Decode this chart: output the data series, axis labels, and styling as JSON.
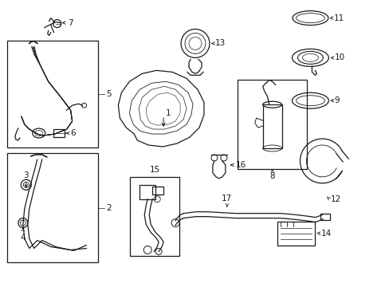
{
  "bg_color": "#ffffff",
  "line_color": "#1a1a1a",
  "fig_width": 4.89,
  "fig_height": 3.6,
  "dpi": 100,
  "label_fontsize": 7.5,
  "lw": 0.9
}
